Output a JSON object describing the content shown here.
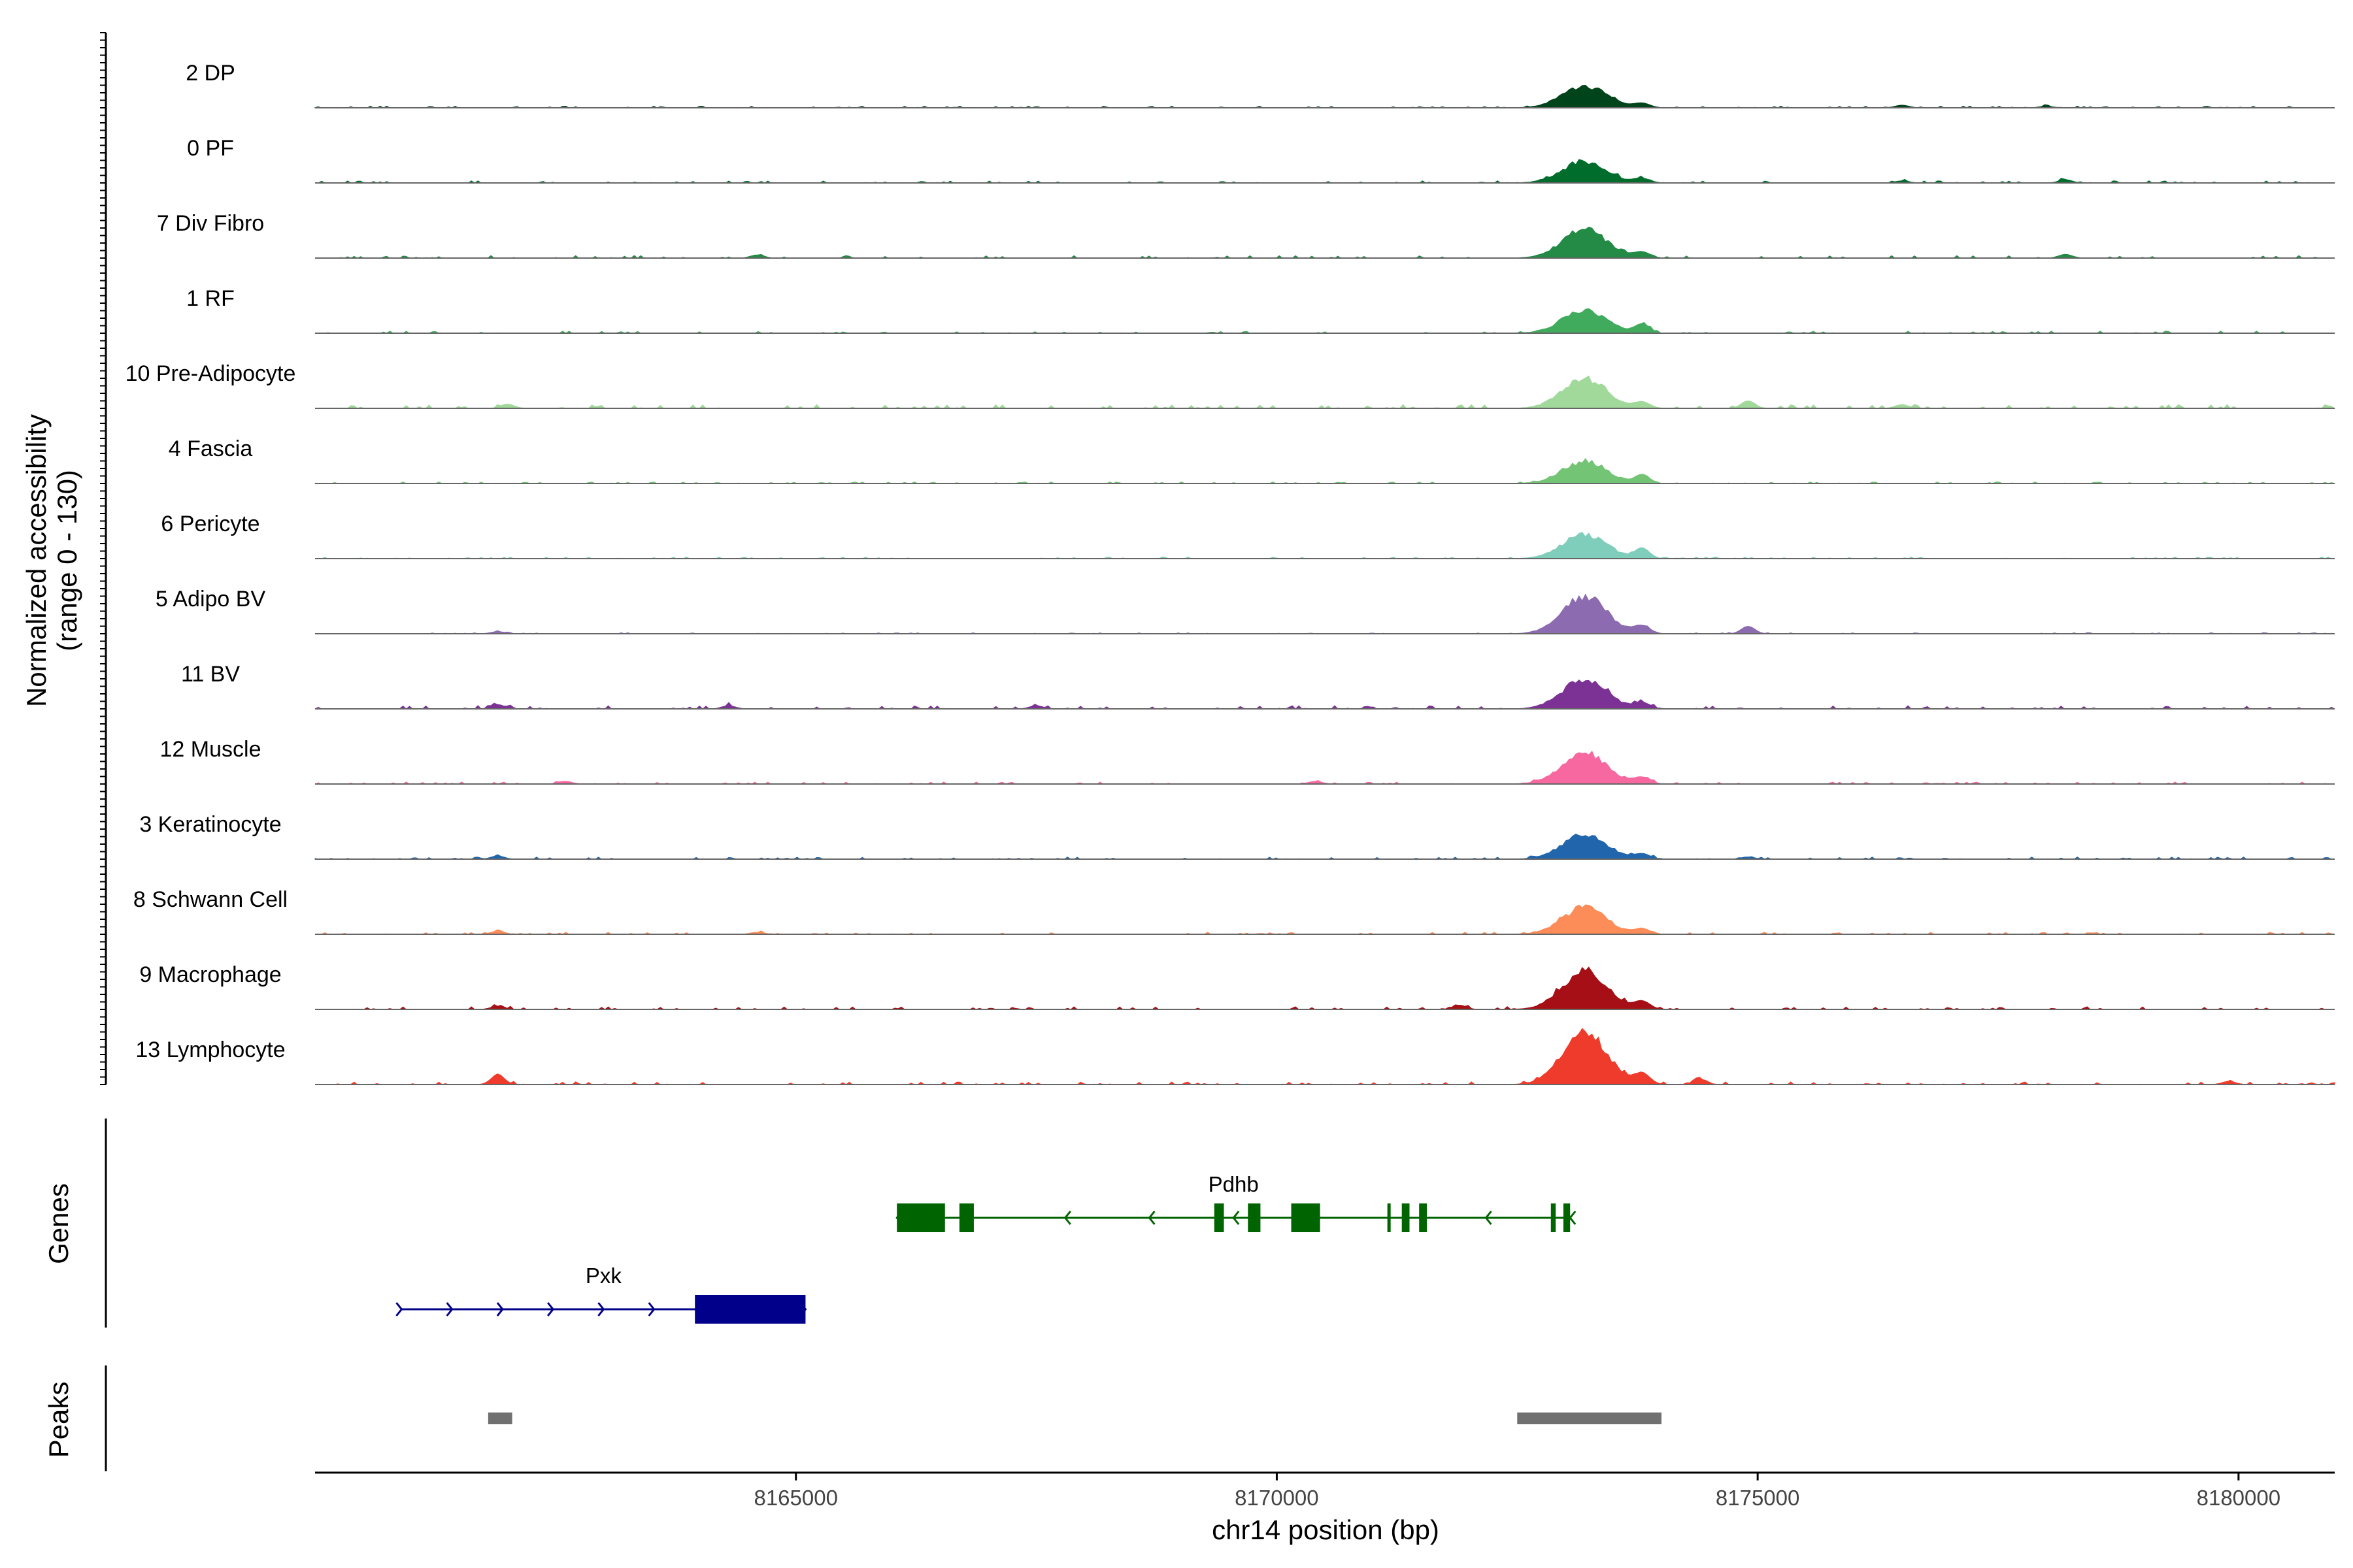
{
  "chart_data": {
    "type": "area",
    "chart_kind": "genome coverage track plot",
    "ylabel": "Normalized accessibility",
    "ylabel_range": "(range 0 - 130)",
    "ylim": [
      0,
      130
    ],
    "xlabel": "chr14 position (bp)",
    "xlim": [
      8160000,
      8181000
    ],
    "xticks": [
      8165000,
      8170000,
      8175000,
      8180000
    ],
    "xtick_labels": [
      "8165000",
      "8170000",
      "8175000",
      "8180000"
    ],
    "main_peak_center": 8173200,
    "secondary_peak_center": 8173800,
    "tracks": [
      {
        "name": "2 DP",
        "color": "#00441b",
        "peak": 45,
        "background": 3,
        "extra_bumps": [
          [
            8176500,
            5
          ],
          [
            8178000,
            3
          ]
        ]
      },
      {
        "name": "0 PF",
        "color": "#006d2c",
        "peak": 44,
        "background": 4,
        "extra_bumps": [
          [
            8178200,
            6
          ],
          [
            8176500,
            4
          ]
        ]
      },
      {
        "name": "7 Div Fibro",
        "color": "#238b45",
        "peak": 60,
        "background": 5,
        "extra_bumps": [
          [
            8164600,
            6
          ],
          [
            8178200,
            7
          ]
        ]
      },
      {
        "name": "1 RF",
        "color": "#41ab5d",
        "peak": 48,
        "background": 4,
        "extra_bumps": [
          [
            8173800,
            8
          ]
        ]
      },
      {
        "name": "10 Pre-Adipocyte",
        "color": "#a1d99b",
        "peak": 62,
        "background": 7,
        "extra_bumps": [
          [
            8174900,
            14
          ],
          [
            8162000,
            8
          ],
          [
            8176500,
            7
          ]
        ]
      },
      {
        "name": "4 Fascia",
        "color": "#74c476",
        "peak": 45,
        "background": 3,
        "extra_bumps": [
          [
            8173800,
            8
          ]
        ]
      },
      {
        "name": "6 Pericyte",
        "color": "#7fcdbb",
        "peak": 50,
        "background": 3,
        "extra_bumps": [
          [
            8173800,
            10
          ]
        ]
      },
      {
        "name": "5 Adipo BV",
        "color": "#8c6bb1",
        "peak": 78,
        "background": 2,
        "extra_bumps": [
          [
            8174900,
            14
          ],
          [
            8161900,
            4
          ]
        ]
      },
      {
        "name": "11 BV",
        "color": "#7b3294",
        "peak": 62,
        "background": 6,
        "extra_bumps": [
          [
            8161900,
            8
          ],
          [
            8164300,
            6
          ],
          [
            8167500,
            6
          ]
        ]
      },
      {
        "name": "12 Muscle",
        "color": "#f768a1",
        "peak": 65,
        "background": 4,
        "extra_bumps": [
          [
            8162600,
            5
          ],
          [
            8170400,
            5
          ]
        ]
      },
      {
        "name": "3 Keratinocyte",
        "color": "#2166ac",
        "peak": 52,
        "background": 4,
        "extra_bumps": [
          [
            8161900,
            6
          ],
          [
            8174900,
            4
          ]
        ]
      },
      {
        "name": "8 Schwann Cell",
        "color": "#fc8d59",
        "peak": 55,
        "background": 4,
        "extra_bumps": [
          [
            8161900,
            6
          ],
          [
            8164600,
            4
          ]
        ]
      },
      {
        "name": "9 Macrophage",
        "color": "#a50f15",
        "peak": 80,
        "background": 5,
        "extra_bumps": [
          [
            8171900,
            8
          ],
          [
            8161900,
            6
          ]
        ]
      },
      {
        "name": "13 Lymphocyte",
        "color": "#ef3b2c",
        "peak": 110,
        "background": 5,
        "extra_bumps": [
          [
            8161900,
            18
          ],
          [
            8174400,
            10
          ],
          [
            8179900,
            6
          ]
        ]
      }
    ],
    "genes": {
      "label": "Genes",
      "items": [
        {
          "name": "Pdhb",
          "strand": "-",
          "color": "#006400",
          "start": 8166050,
          "end": 8173050,
          "exons": [
            [
              8166050,
              8166550
            ],
            [
              8166700,
              8166850
            ],
            [
              8169350,
              8169450
            ],
            [
              8169700,
              8169830
            ],
            [
              8170150,
              8170450
            ],
            [
              8171150,
              8171170
            ],
            [
              8171300,
              8171380
            ],
            [
              8171480,
              8171560
            ],
            [
              8172850,
              8172900
            ],
            [
              8172980,
              8173050
            ]
          ]
        },
        {
          "name": "Pxk",
          "strand": "+",
          "color": "#00008b",
          "start": 8160900,
          "end": 8165100,
          "exons": [
            [
              8163950,
              8165100
            ]
          ]
        }
      ]
    },
    "peaks": {
      "label": "Peaks",
      "color": "#707070",
      "regions": [
        [
          8161800,
          8162050
        ],
        [
          8172500,
          8174000
        ]
      ]
    }
  }
}
